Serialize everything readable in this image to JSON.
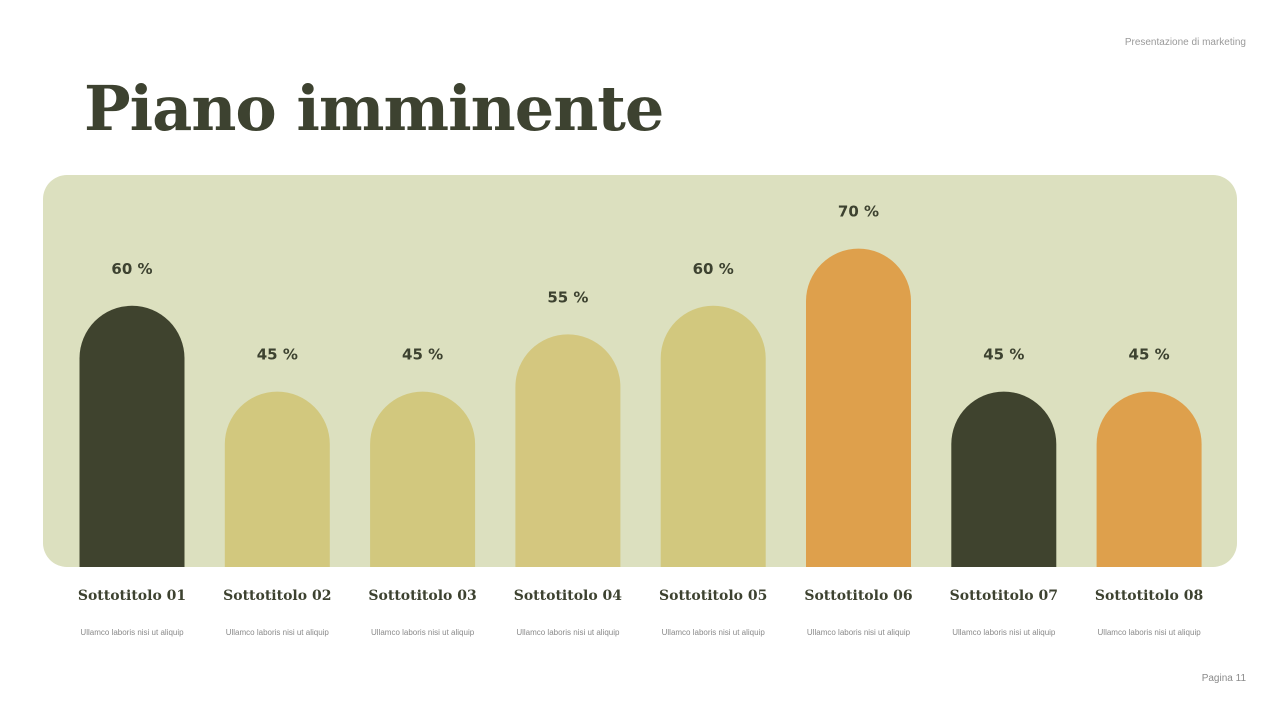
{
  "header": {
    "deck_title": "Presentazione di marketing",
    "slide_title": "Piano imminente"
  },
  "footer": {
    "page": "Pagina 11"
  },
  "colors": {
    "dark": "#3f432e",
    "yellow": "#d2c87e",
    "orange": "#dea04c",
    "panel": "#dce0bf",
    "text": "#3d4230"
  },
  "chart_data": {
    "type": "bar",
    "categories": [
      "Sottotitolo 01",
      "Sottotitolo 02",
      "Sottotitolo 03",
      "Sottotitolo 04",
      "Sottotitolo 05",
      "Sottotitolo 06",
      "Sottotitolo 07",
      "Sottotitolo 08"
    ],
    "values": [
      60,
      45,
      45,
      55,
      60,
      70,
      45,
      45
    ],
    "data_labels": [
      "60 %",
      "45 %",
      "45 %",
      "55 %",
      "60 %",
      "70 %",
      "45 %",
      "45 %"
    ],
    "descriptions": [
      "Ullamco laboris nisi ut aliquip",
      "Ullamco laboris nisi ut aliquip",
      "Ullamco laboris nisi ut aliquip",
      "Ullamco laboris nisi ut aliquip",
      "Ullamco laboris nisi ut aliquip",
      "Ullamco laboris nisi ut aliquip",
      "Ullamco laboris nisi ut aliquip",
      "Ullamco laboris nisi ut aliquip"
    ],
    "bar_colors": [
      "#3f432e",
      "#d2c87e",
      "#d2c87e",
      "#d4c77f",
      "#d2c87e",
      "#dea04c",
      "#3f432e",
      "#dea04c"
    ],
    "bar_shape": "rounded-top arch",
    "grid": false,
    "legend": "none"
  }
}
